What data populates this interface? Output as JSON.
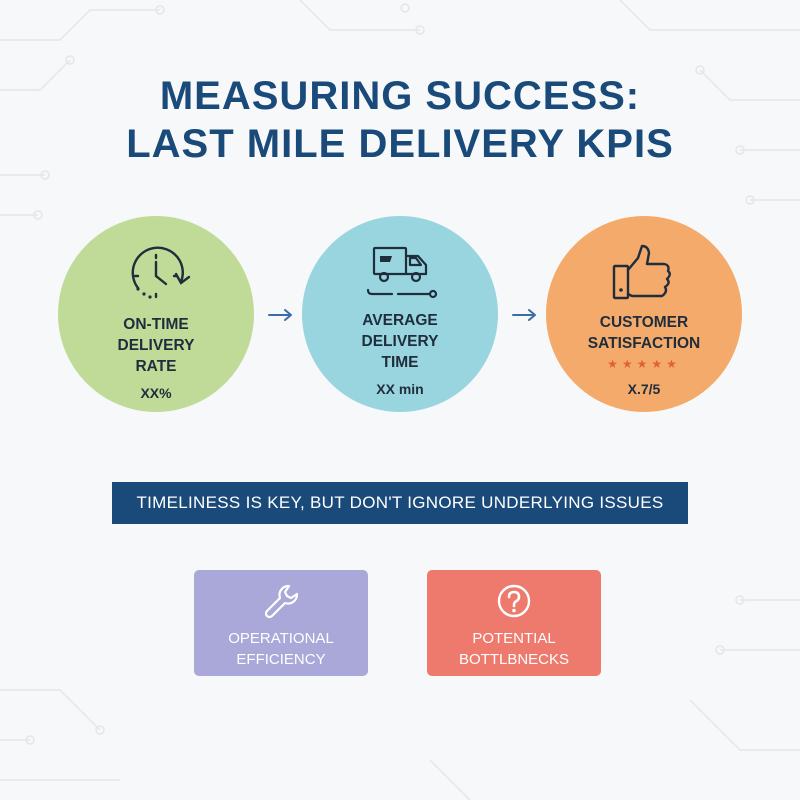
{
  "title": {
    "line1": "MEASURING SUCCESS:",
    "line2": "LAST MILE DELIVERY KPIS"
  },
  "kpis": [
    {
      "label": [
        "ON-TIME",
        "DELIVERY",
        "RATE"
      ],
      "value": "XX%",
      "icon": "clock-icon",
      "color": "#bfdb97"
    },
    {
      "label": [
        "AVERAGE",
        "DELIVERY",
        "TIME"
      ],
      "value": "XX min",
      "icon": "delivery-truck-icon",
      "color": "#99d5df"
    },
    {
      "label": [
        "CUSTOMER",
        "SATISFACTION"
      ],
      "value": "X.7/5",
      "icon": "thumbs-up-icon",
      "rating_stars": 5,
      "color": "#f4aa6a"
    }
  ],
  "banner": "TIMELINESS IS KEY, BUT DON'T IGNORE UNDERLYING ISSUES",
  "cards": [
    {
      "label": [
        "OPERATIONAL",
        "EFFICIENCY"
      ],
      "icon": "wrench-icon",
      "color": "#aaa8d8"
    },
    {
      "label": [
        "POTENTIAL",
        "BOTTLBNECKS"
      ],
      "icon": "question-icon",
      "color": "#ee7a6e"
    }
  ],
  "colors": {
    "title": "#1a4a7a",
    "banner": "#1a4a7a",
    "text": "#1f2d3d",
    "arrow": "#3a6ea5",
    "stars": "#e0622f"
  }
}
